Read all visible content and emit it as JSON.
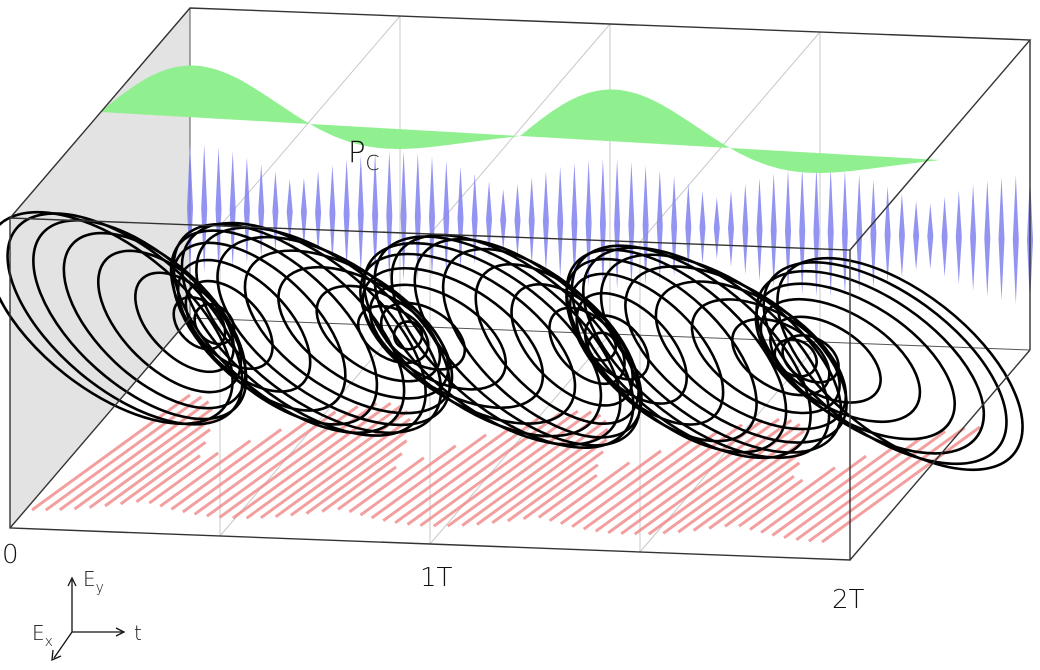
{
  "labels": {
    "time_origin": "0",
    "time_mid": "1T",
    "time_end": "2T",
    "pc_main": "P",
    "pc_sub": "C"
  },
  "axes_legend": {
    "ey_main": "E",
    "ey_sub": "y",
    "ex_main": "E",
    "ex_sub": "x",
    "t": "t"
  },
  "colors": {
    "ellipse_stroke": "#000000",
    "ex_projection": "#f08080",
    "ey_projection": "#8080f0",
    "pc_fill": "#90f090",
    "back_wall": "#e3e3e3",
    "box_edge": "#333333",
    "grid_line": "#c8c8c8"
  },
  "wave": {
    "periods": 2,
    "ellipse_count": 54,
    "ey_oscillations": 60,
    "ex_oscillations": 60
  }
}
